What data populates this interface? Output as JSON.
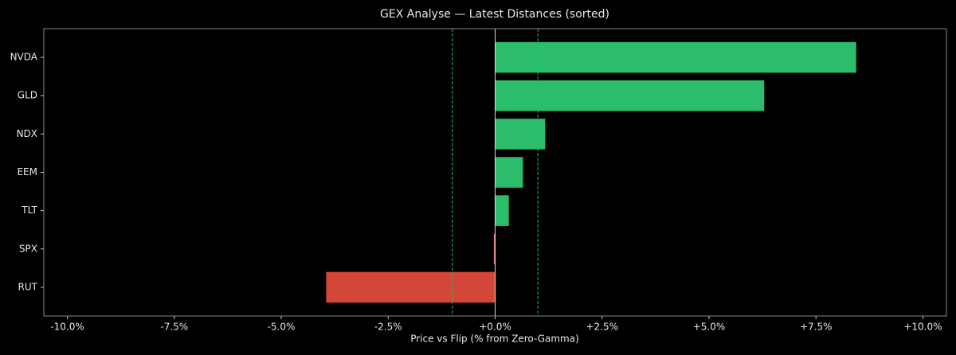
{
  "chart_data": {
    "type": "barh",
    "title": "GEX Analyse — Latest Distances (sorted)",
    "x_label": "Price vs Flip (% from Zero-Gamma)",
    "categories": [
      "NVDA",
      "GLD",
      "NDX",
      "EEM",
      "TLT",
      "SPX",
      "RUT"
    ],
    "values": [
      8.44,
      6.29,
      1.17,
      0.65,
      0.32,
      -0.03,
      -3.95
    ],
    "colors": [
      "#2bbd6c",
      "#2bbd6c",
      "#2bbd6c",
      "#2bbd6c",
      "#2bbd6c",
      "#e0707a",
      "#d44637"
    ],
    "xlim": [
      -10.55,
      10.55
    ],
    "xticks": [
      {
        "value": -10,
        "label": "-10.0%"
      },
      {
        "value": -7.5,
        "label": "-7.5%"
      },
      {
        "value": -5,
        "label": "-5.0%"
      },
      {
        "value": -2.5,
        "label": "-2.5%"
      },
      {
        "value": 0,
        "label": "+0.0%"
      },
      {
        "value": 2.5,
        "label": "+2.5%"
      },
      {
        "value": 5,
        "label": "+5.0%"
      },
      {
        "value": 7.5,
        "label": "+7.5%"
      },
      {
        "value": 10,
        "label": "+10.0%"
      }
    ],
    "reference_lines": [
      -1,
      1
    ],
    "reference_color": "#1abc7c",
    "zero_line_color": "#dddddd"
  }
}
